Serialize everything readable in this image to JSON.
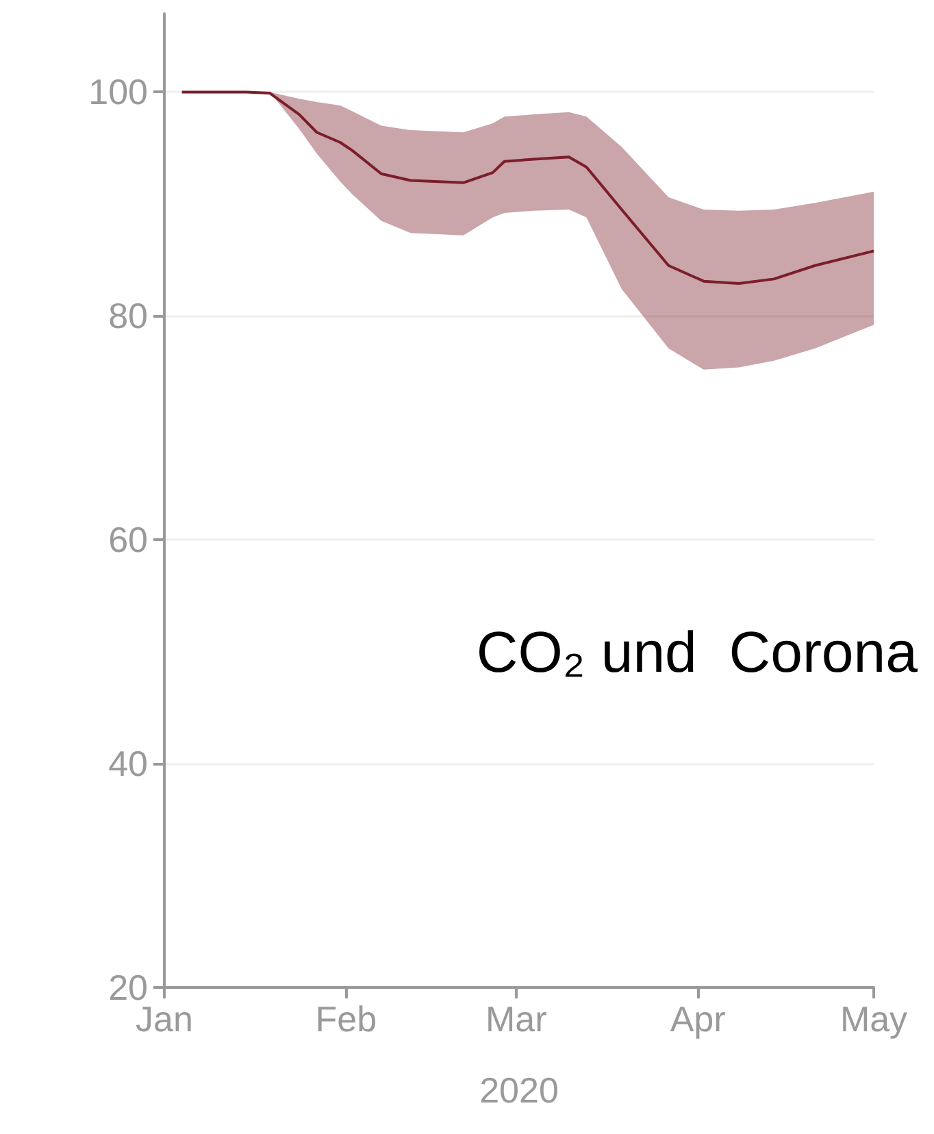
{
  "chart_data": {
    "type": "line",
    "xlabel": "2020",
    "annotations": [
      "CO₂ und  Corona"
    ],
    "x": [
      "2020-01-04",
      "2020-01-15",
      "2020-01-19",
      "2020-01-24",
      "2020-01-27",
      "2020-01-31",
      "2020-02-02",
      "2020-02-07",
      "2020-02-12",
      "2020-02-21",
      "2020-02-26",
      "2020-02-28",
      "2020-03-04",
      "2020-03-10",
      "2020-03-13",
      "2020-03-19",
      "2020-03-27",
      "2020-04-02",
      "2020-04-08",
      "2020-04-14",
      "2020-04-21",
      "2020-05-01"
    ],
    "series": [
      {
        "color": "#7b1e2a",
        "values": [
          100,
          100,
          99.9,
          98,
          96.4,
          95.5,
          94.8,
          92.7,
          92.1,
          91.9,
          92.8,
          93.8,
          94,
          94.2,
          93.3,
          89.5,
          84.5,
          83.1,
          82.9,
          83.3,
          84.5,
          85.8
        ],
        "lower": [
          100,
          100,
          100,
          96.7,
          94.5,
          92,
          90.9,
          88.5,
          87.4,
          87.2,
          88.8,
          89.2,
          89.4,
          89.5,
          88.8,
          82.4,
          77.1,
          75.2,
          75.4,
          76,
          77.1,
          79.2
        ],
        "upper": [
          100,
          100,
          100,
          99.4,
          99.1,
          98.8,
          98.3,
          97,
          96.6,
          96.4,
          97.2,
          97.8,
          98,
          98.2,
          97.8,
          95.1,
          90.6,
          89.5,
          89.4,
          89.5,
          90.1,
          91.1
        ]
      }
    ],
    "xlim": [
      "2020-01-01",
      "2020-05-01"
    ],
    "xticks": [
      {
        "value": "2020-01-01",
        "label": "Jan"
      },
      {
        "value": "2020-02-01",
        "label": "Feb"
      },
      {
        "value": "2020-03-01",
        "label": "Mar"
      },
      {
        "value": "2020-04-01",
        "label": "Apr"
      },
      {
        "value": "2020-05-01",
        "label": "May"
      }
    ],
    "ylim": [
      20,
      107
    ],
    "yticks": [
      20,
      40,
      60,
      80,
      100
    ],
    "grid": "y",
    "marker": "none",
    "line_style": "solid"
  }
}
